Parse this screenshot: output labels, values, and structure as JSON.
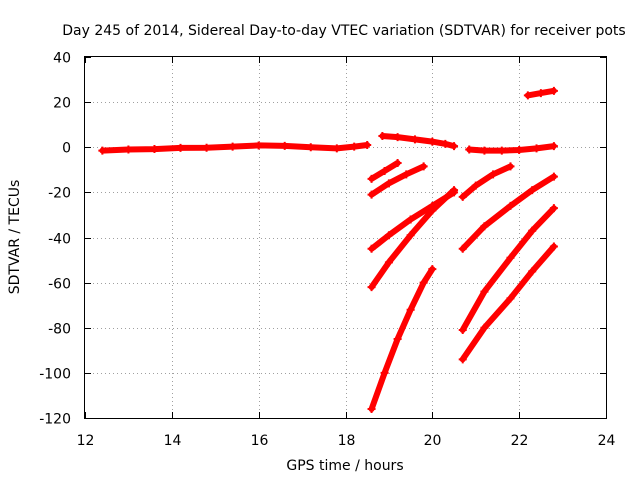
{
  "chart_data": {
    "type": "scatter",
    "title": "Day 245 of 2014, Sidereal Day-to-day VTEC variation (SDTVAR) for receiver pots",
    "xlabel": "GPS time / hours",
    "ylabel": "SDTVAR / TECUs",
    "xlim": [
      12,
      24
    ],
    "ylim": [
      -120,
      40
    ],
    "xticks": [
      12,
      14,
      16,
      18,
      20,
      22,
      24
    ],
    "yticks": [
      -120,
      -100,
      -80,
      -60,
      -40,
      -20,
      0,
      20,
      40
    ],
    "grid": true,
    "color": "#ff0000",
    "series": [
      {
        "x": [
          12.4,
          13.0,
          13.6,
          14.2,
          14.8,
          15.4,
          16.0,
          16.6,
          17.2,
          17.8,
          18.2,
          18.5
        ],
        "y": [
          -1.5,
          -1.0,
          -0.8,
          -0.3,
          -0.2,
          0.3,
          0.8,
          0.6,
          0.0,
          -0.5,
          0.3,
          1.0
        ]
      },
      {
        "x": [
          18.85,
          19.2,
          19.6,
          20.0,
          20.3,
          20.5
        ],
        "y": [
          5.0,
          4.5,
          3.5,
          2.5,
          1.5,
          0.5
        ]
      },
      {
        "x": [
          20.85,
          21.2,
          21.6,
          22.0,
          22.4,
          22.8
        ],
        "y": [
          -1.0,
          -1.5,
          -1.5,
          -1.2,
          -0.5,
          0.5
        ]
      },
      {
        "x": [
          22.2,
          22.5,
          22.8
        ],
        "y": [
          23.0,
          24.0,
          25.0
        ]
      },
      {
        "x": [
          18.6,
          18.9,
          19.2
        ],
        "y": [
          -14.0,
          -10.5,
          -7.0
        ]
      },
      {
        "x": [
          18.6,
          19.0,
          19.4,
          19.8
        ],
        "y": [
          -21.0,
          -16.0,
          -12.0,
          -8.5
        ]
      },
      {
        "x": [
          18.6,
          19.0,
          19.5,
          20.0,
          20.5
        ],
        "y": [
          -45.0,
          -39.0,
          -32.0,
          -26.0,
          -20.0
        ]
      },
      {
        "x": [
          18.6,
          19.0,
          19.5,
          20.0,
          20.5
        ],
        "y": [
          -62.0,
          -51.0,
          -39.0,
          -28.0,
          -19.0
        ]
      },
      {
        "x": [
          18.6,
          18.9,
          19.2,
          19.5,
          19.8,
          20.0
        ],
        "y": [
          -116.0,
          -100.0,
          -85.0,
          -72.0,
          -60.0,
          -54.0
        ]
      },
      {
        "x": [
          20.7,
          21.0,
          21.4,
          21.8
        ],
        "y": [
          -22.0,
          -17.0,
          -12.0,
          -8.5
        ]
      },
      {
        "x": [
          20.7,
          21.2,
          21.8,
          22.3,
          22.8
        ],
        "y": [
          -45.0,
          -35.0,
          -26.0,
          -19.0,
          -13.0
        ]
      },
      {
        "x": [
          20.7,
          21.2,
          21.8,
          22.3,
          22.8
        ],
        "y": [
          -81.0,
          -64.0,
          -49.0,
          -37.0,
          -27.0
        ]
      },
      {
        "x": [
          20.7,
          21.2,
          21.8,
          22.3,
          22.8
        ],
        "y": [
          -94.0,
          -80.0,
          -67.0,
          -55.0,
          -44.0
        ]
      }
    ]
  }
}
